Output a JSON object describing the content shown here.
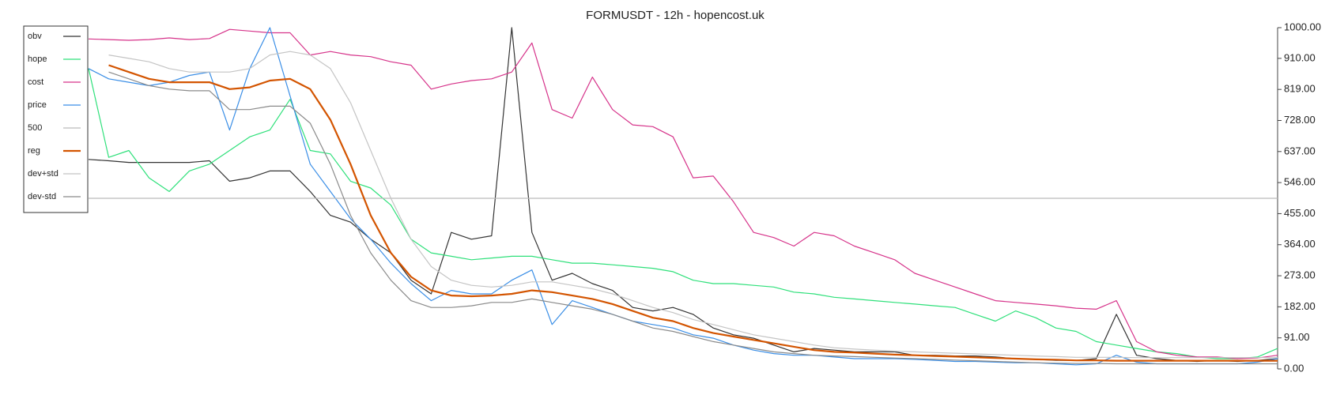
{
  "chart_data": {
    "type": "line",
    "title": "FORMUSDT - 12h - hopencost.uk",
    "ylim": [
      0,
      1000
    ],
    "yticks": [
      {
        "value": 0,
        "label": "0.00"
      },
      {
        "value": 91,
        "label": "91.00"
      },
      {
        "value": 182,
        "label": "182.00"
      },
      {
        "value": 273,
        "label": "273.00"
      },
      {
        "value": 364,
        "label": "364.00"
      },
      {
        "value": 455,
        "label": "455.00"
      },
      {
        "value": 546,
        "label": "546.00"
      },
      {
        "value": 637,
        "label": "637.00"
      },
      {
        "value": 728,
        "label": "728.00"
      },
      {
        "value": 819,
        "label": "819.00"
      },
      {
        "value": 910,
        "label": "910.00"
      },
      {
        "value": 1000,
        "label": "1000.00"
      }
    ],
    "y_axis_side": "right",
    "grid": false,
    "legend": "upper left",
    "series": [
      {
        "name": "obv",
        "color": "#333333",
        "values": [
          614,
          610,
          605,
          605,
          605,
          605,
          610,
          550,
          560,
          580,
          580,
          520,
          450,
          430,
          380,
          340,
          260,
          220,
          400,
          380,
          390,
          1000,
          400,
          260,
          280,
          250,
          230,
          180,
          170,
          180,
          160,
          120,
          100,
          90,
          70,
          50,
          60,
          55,
          50,
          50,
          50,
          40,
          40,
          38,
          38,
          35,
          30,
          28,
          25,
          25,
          30,
          160,
          40,
          30,
          25,
          22,
          25,
          22,
          25,
          30
        ]
      },
      {
        "name": "hope",
        "color": "#2ee07a",
        "values": [
          880,
          620,
          640,
          560,
          520,
          580,
          600,
          640,
          680,
          700,
          790,
          640,
          630,
          550,
          530,
          480,
          380,
          340,
          330,
          320,
          325,
          330,
          330,
          320,
          310,
          310,
          305,
          300,
          295,
          285,
          260,
          250,
          250,
          245,
          240,
          225,
          220,
          210,
          205,
          200,
          195,
          190,
          185,
          180,
          160,
          140,
          170,
          150,
          120,
          110,
          80,
          70,
          60,
          50,
          45,
          35,
          30,
          30,
          35,
          60
        ]
      },
      {
        "name": "cost",
        "color": "#d6338a",
        "values": [
          967,
          965,
          963,
          965,
          970,
          965,
          968,
          995,
          990,
          985,
          985,
          920,
          930,
          920,
          915,
          900,
          890,
          820,
          835,
          845,
          850,
          870,
          955,
          760,
          735,
          855,
          760,
          715,
          710,
          680,
          560,
          565,
          490,
          400,
          385,
          360,
          400,
          390,
          360,
          340,
          320,
          280,
          260,
          240,
          220,
          200,
          195,
          190,
          185,
          178,
          175,
          200,
          80,
          50,
          40,
          35,
          35,
          30,
          32,
          40
        ]
      },
      {
        "name": "price",
        "color": "#3a8ee6",
        "values": [
          880,
          850,
          840,
          830,
          840,
          860,
          870,
          700,
          880,
          1000,
          800,
          600,
          520,
          440,
          380,
          310,
          250,
          200,
          230,
          220,
          220,
          260,
          290,
          130,
          200,
          180,
          160,
          140,
          130,
          120,
          100,
          90,
          70,
          55,
          45,
          40,
          40,
          35,
          30,
          30,
          30,
          28,
          25,
          22,
          22,
          20,
          18,
          18,
          15,
          12,
          15,
          40,
          20,
          15,
          15,
          15,
          15,
          15,
          20,
          30
        ]
      },
      {
        "name": "500",
        "color": "#bbbbbb",
        "values": [
          500,
          500,
          500,
          500,
          500,
          500,
          500,
          500,
          500,
          500,
          500,
          500,
          500,
          500,
          500,
          500,
          500,
          500,
          500,
          500,
          500,
          500,
          500,
          500,
          500,
          500,
          500,
          500,
          500,
          500,
          500,
          500,
          500,
          500,
          500,
          500,
          500,
          500,
          500,
          500,
          500,
          500,
          500,
          500,
          500,
          500,
          500,
          500,
          500,
          500,
          500,
          500,
          500,
          500,
          500,
          500,
          500,
          500,
          500,
          500
        ]
      },
      {
        "name": "reg",
        "color": "#d35400",
        "linewidth": 2.2,
        "values": [
          null,
          890,
          870,
          850,
          840,
          840,
          840,
          820,
          825,
          845,
          850,
          820,
          730,
          600,
          450,
          340,
          270,
          230,
          215,
          213,
          215,
          220,
          230,
          225,
          215,
          205,
          190,
          170,
          150,
          140,
          120,
          105,
          95,
          85,
          75,
          65,
          55,
          50,
          48,
          45,
          42,
          40,
          38,
          36,
          34,
          32,
          30,
          28,
          27,
          25,
          25,
          24,
          24,
          24,
          24,
          24,
          24,
          24,
          24,
          24
        ]
      },
      {
        "name": "dev+std",
        "color": "#c4c4c4",
        "values": [
          null,
          920,
          910,
          900,
          880,
          870,
          870,
          870,
          880,
          920,
          930,
          920,
          880,
          780,
          640,
          500,
          380,
          300,
          260,
          245,
          240,
          245,
          255,
          255,
          245,
          235,
          220,
          200,
          180,
          165,
          145,
          130,
          115,
          100,
          90,
          80,
          70,
          62,
          58,
          55,
          52,
          50,
          48,
          46,
          44,
          42,
          40,
          38,
          36,
          34,
          34,
          34,
          33,
          33,
          33,
          33,
          33,
          33,
          33,
          33
        ]
      },
      {
        "name": "dev-std",
        "color": "#8a8a8a",
        "values": [
          null,
          870,
          850,
          830,
          820,
          815,
          815,
          760,
          760,
          770,
          770,
          720,
          600,
          450,
          340,
          260,
          200,
          180,
          180,
          185,
          195,
          195,
          205,
          195,
          185,
          175,
          160,
          140,
          120,
          110,
          95,
          80,
          70,
          60,
          50,
          45,
          40,
          38,
          36,
          34,
          32,
          30,
          28,
          26,
          24,
          22,
          20,
          18,
          17,
          16,
          16,
          15,
          15,
          15,
          15,
          15,
          15,
          15,
          15,
          15
        ]
      }
    ]
  }
}
